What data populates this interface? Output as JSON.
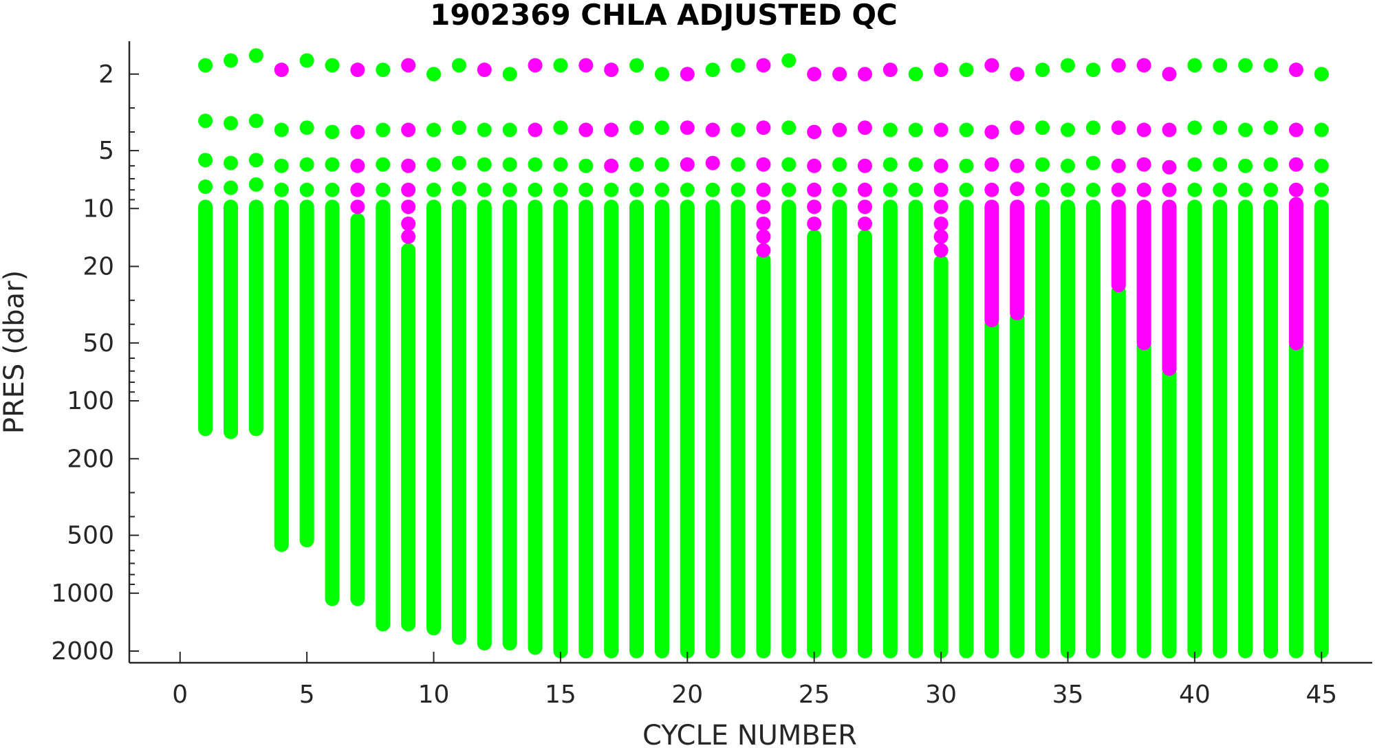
{
  "chart_data": {
    "type": "scatter",
    "title": "1902369  CHLA ADJUSTED QC",
    "xlabel": "CYCLE NUMBER",
    "ylabel": "PRES (dbar)",
    "xlim": [
      -2,
      47
    ],
    "ylim": [
      1.35,
      2300
    ],
    "yscale": "log",
    "yreversed": true,
    "x_ticks": [
      0,
      5,
      10,
      15,
      20,
      25,
      30,
      35,
      40,
      45
    ],
    "y_ticks": [
      2,
      5,
      10,
      20,
      50,
      100,
      200,
      500,
      1000,
      2000
    ],
    "grid": false,
    "legend": "none",
    "colors": {
      "good": "#00ff00",
      "flagged": "#ff00ff"
    },
    "series": [
      {
        "qc": "good",
        "profiles": [
          {
            "cycle": 1,
            "top_points": [
              1.8,
              3.5,
              5.6,
              7.7
            ],
            "column": [
              9.8,
              140
            ]
          },
          {
            "cycle": 2,
            "top_points": [
              1.7,
              3.6,
              5.8,
              7.8
            ],
            "column": [
              9.8,
              145
            ]
          },
          {
            "cycle": 3,
            "top_points": [
              1.6,
              3.5,
              5.6,
              7.5
            ],
            "column": [
              9.8,
              140
            ]
          },
          {
            "cycle": 4,
            "top_points": [
              3.9,
              6.0,
              8.0
            ],
            "column": [
              9.8,
              560
            ]
          },
          {
            "cycle": 5,
            "top_points": [
              1.7,
              3.8,
              5.9,
              8.0
            ],
            "column": [
              9.8,
              530
            ]
          },
          {
            "cycle": 6,
            "top_points": [
              1.8,
              4.0,
              5.9,
              8.0
            ],
            "column": [
              9.8,
              1070
            ]
          },
          {
            "cycle": 7,
            "top_points": [],
            "column": [
              11.5,
              1070
            ]
          },
          {
            "cycle": 8,
            "top_points": [
              1.9,
              3.9,
              5.9,
              8.0
            ],
            "column": [
              9.8,
              1450
            ]
          },
          {
            "cycle": 9,
            "top_points": [],
            "column": [
              16.5,
              1450
            ]
          },
          {
            "cycle": 10,
            "top_points": [
              2.0,
              3.9,
              5.9,
              8.0
            ],
            "column": [
              9.8,
              1520
            ]
          },
          {
            "cycle": 11,
            "top_points": [
              1.8,
              3.8,
              5.8,
              7.9
            ],
            "column": [
              9.8,
              1700
            ]
          },
          {
            "cycle": 12,
            "top_points": [
              3.9,
              5.9,
              8.0
            ],
            "column": [
              9.8,
              1820
            ]
          },
          {
            "cycle": 13,
            "top_points": [
              2.0,
              3.9,
              5.9,
              8.0
            ],
            "column": [
              9.8,
              1820
            ]
          },
          {
            "cycle": 14,
            "top_points": [
              5.9,
              8.0
            ],
            "column": [
              9.8,
              1920
            ]
          },
          {
            "cycle": 15,
            "top_points": [
              1.8,
              3.8,
              5.9,
              8.0
            ],
            "column": [
              9.8,
              2000
            ]
          },
          {
            "cycle": 16,
            "top_points": [
              6.0,
              8.0
            ],
            "column": [
              9.8,
              2000
            ]
          },
          {
            "cycle": 17,
            "top_points": [
              8.0
            ],
            "column": [
              9.8,
              2000
            ]
          },
          {
            "cycle": 18,
            "top_points": [
              1.8,
              3.8,
              5.9,
              8.0
            ],
            "column": [
              9.8,
              2000
            ]
          },
          {
            "cycle": 19,
            "top_points": [
              2.0,
              3.8,
              5.9,
              8.0
            ],
            "column": [
              9.8,
              2000
            ]
          },
          {
            "cycle": 20,
            "top_points": [
              8.0
            ],
            "column": [
              9.8,
              2000
            ]
          },
          {
            "cycle": 21,
            "top_points": [
              1.9,
              8.0
            ],
            "column": [
              9.8,
              2000
            ]
          },
          {
            "cycle": 22,
            "top_points": [
              1.8,
              3.9,
              5.9,
              8.0
            ],
            "column": [
              9.8,
              2000
            ]
          },
          {
            "cycle": 23,
            "top_points": [],
            "column": [
              18.5,
              2000
            ]
          },
          {
            "cycle": 24,
            "top_points": [
              1.7,
              3.8,
              5.9,
              8.0
            ],
            "column": [
              9.8,
              2000
            ]
          },
          {
            "cycle": 25,
            "top_points": [],
            "column": [
              14.0,
              2000
            ]
          },
          {
            "cycle": 26,
            "top_points": [
              5.9,
              8.0
            ],
            "column": [
              9.8,
              2000
            ]
          },
          {
            "cycle": 27,
            "top_points": [],
            "column": [
              14.0,
              2000
            ]
          },
          {
            "cycle": 28,
            "top_points": [
              3.9,
              5.9,
              8.0
            ],
            "column": [
              9.8,
              2000
            ]
          },
          {
            "cycle": 29,
            "top_points": [
              2.0,
              3.9,
              5.9,
              8.0
            ],
            "column": [
              9.8,
              2000
            ]
          },
          {
            "cycle": 30,
            "top_points": [],
            "column": [
              19.0,
              2000
            ]
          },
          {
            "cycle": 31,
            "top_points": [
              1.9,
              3.9,
              6.0,
              8.0
            ],
            "column": [
              9.8,
              2000
            ]
          },
          {
            "cycle": 32,
            "top_points": [],
            "column": [
              40.0,
              2000
            ]
          },
          {
            "cycle": 33,
            "top_points": [],
            "column": [
              37.0,
              2000
            ]
          },
          {
            "cycle": 34,
            "top_points": [
              1.9,
              3.8,
              5.9,
              8.0
            ],
            "column": [
              9.8,
              2000
            ]
          },
          {
            "cycle": 35,
            "top_points": [
              1.8,
              3.9,
              6.0,
              8.0
            ],
            "column": [
              9.8,
              2000
            ]
          },
          {
            "cycle": 36,
            "top_points": [
              1.9,
              3.8,
              5.8,
              8.0
            ],
            "column": [
              9.8,
              2000
            ]
          },
          {
            "cycle": 37,
            "top_points": [],
            "column": [
              27.0,
              2000
            ]
          },
          {
            "cycle": 38,
            "top_points": [],
            "column": [
              52.0,
              2000
            ]
          },
          {
            "cycle": 39,
            "top_points": [],
            "column": [
              72.0,
              2000
            ]
          },
          {
            "cycle": 40,
            "top_points": [
              1.8,
              3.8,
              5.9,
              8.0
            ],
            "column": [
              9.8,
              2000
            ]
          },
          {
            "cycle": 41,
            "top_points": [
              1.8,
              3.8,
              5.9,
              8.0
            ],
            "column": [
              9.8,
              2000
            ]
          },
          {
            "cycle": 42,
            "top_points": [
              1.8,
              3.9,
              6.0,
              8.0
            ],
            "column": [
              9.8,
              2000
            ]
          },
          {
            "cycle": 43,
            "top_points": [
              1.8,
              3.8,
              5.9,
              8.0
            ],
            "column": [
              9.8,
              2000
            ]
          },
          {
            "cycle": 44,
            "top_points": [],
            "column": [
              52.0,
              2000
            ]
          },
          {
            "cycle": 45,
            "top_points": [
              2.0,
              3.9,
              6.0,
              8.0
            ],
            "column": [
              9.8,
              2000
            ]
          }
        ]
      },
      {
        "qc": "flagged",
        "profiles": [
          {
            "cycle": 4,
            "top_points": [
              1.9
            ]
          },
          {
            "cycle": 7,
            "top_points": [
              1.9,
              4.0,
              6.0,
              8.0,
              9.8
            ]
          },
          {
            "cycle": 9,
            "top_points": [
              1.8,
              3.9,
              6.0,
              8.0,
              9.8,
              12.0,
              14.0
            ]
          },
          {
            "cycle": 12,
            "top_points": [
              1.9
            ]
          },
          {
            "cycle": 14,
            "top_points": [
              1.8,
              3.9
            ]
          },
          {
            "cycle": 16,
            "top_points": [
              1.8,
              3.9
            ]
          },
          {
            "cycle": 17,
            "top_points": [
              1.9,
              3.9,
              6.0
            ]
          },
          {
            "cycle": 20,
            "top_points": [
              2.0,
              3.8,
              5.9
            ]
          },
          {
            "cycle": 21,
            "top_points": [
              3.9,
              5.8
            ]
          },
          {
            "cycle": 23,
            "top_points": [
              1.8,
              3.8,
              5.9,
              8.0,
              9.8,
              12.0,
              14.0,
              16.5
            ]
          },
          {
            "cycle": 25,
            "top_points": [
              2.0,
              4.0,
              6.0,
              8.0,
              9.8,
              12.0
            ]
          },
          {
            "cycle": 26,
            "top_points": [
              2.0,
              3.9
            ]
          },
          {
            "cycle": 27,
            "top_points": [
              2.0,
              3.8,
              6.0,
              8.0,
              9.8,
              12.0
            ]
          },
          {
            "cycle": 28,
            "top_points": [
              1.9
            ]
          },
          {
            "cycle": 30,
            "top_points": [
              1.9,
              3.9,
              6.0,
              8.0,
              9.8,
              12.0,
              14.0,
              16.5
            ]
          },
          {
            "cycle": 32,
            "top_points": [
              1.8,
              4.0,
              5.9,
              8.0
            ],
            "column": [
              9.8,
              38.0
            ]
          },
          {
            "cycle": 33,
            "top_points": [
              2.0,
              3.8,
              6.0,
              7.9
            ],
            "column": [
              9.8,
              35.0
            ]
          },
          {
            "cycle": 37,
            "top_points": [
              1.8,
              3.8,
              6.0,
              8.0
            ],
            "column": [
              9.8,
              25.0
            ]
          },
          {
            "cycle": 38,
            "top_points": [
              1.8,
              3.9,
              5.9,
              8.0
            ],
            "column": [
              9.8,
              50.0
            ]
          },
          {
            "cycle": 39,
            "top_points": [
              2.0,
              3.9,
              6.1,
              8.0
            ],
            "column": [
              9.8,
              68.0
            ]
          },
          {
            "cycle": 44,
            "top_points": [
              1.9,
              3.9,
              5.9,
              8.0
            ],
            "column": [
              9.5,
              50.0
            ]
          }
        ]
      }
    ]
  }
}
